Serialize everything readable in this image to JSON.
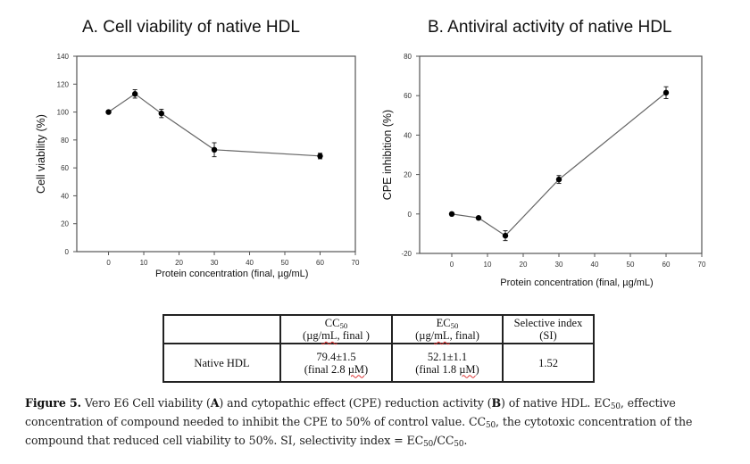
{
  "chart_data": [
    {
      "type": "line",
      "id": "A",
      "title": "A. Cell viability of native HDL",
      "xlabel": "Protein concentration (final, µg/mL)",
      "ylabel": "Cell viability (%)",
      "xlim": [
        -9,
        70
      ],
      "ylim": [
        0,
        140
      ],
      "xticks": [
        0,
        10,
        20,
        30,
        40,
        50,
        60,
        70
      ],
      "yticks": [
        0,
        20,
        40,
        60,
        80,
        100,
        120,
        140
      ],
      "grid": false,
      "legend": "none",
      "series": [
        {
          "name": "Native HDL",
          "x": [
            0,
            7.5,
            15,
            30,
            60
          ],
          "y": [
            100,
            113,
            99,
            73,
            68.5
          ],
          "error": [
            0.8,
            3,
            3,
            5,
            2
          ]
        }
      ]
    },
    {
      "type": "line",
      "id": "B",
      "title": "B. Antiviral activity of native HDL",
      "xlabel": "Protein concentration (final, µg/mL)",
      "ylabel": "CPE inhibition (%)",
      "xlim": [
        -9,
        70
      ],
      "ylim": [
        -20,
        80
      ],
      "xticks": [
        0,
        10,
        20,
        30,
        40,
        50,
        60,
        70
      ],
      "yticks": [
        -20,
        0,
        20,
        40,
        60,
        80
      ],
      "grid": false,
      "legend": "none",
      "series": [
        {
          "name": "Native HDL",
          "x": [
            0,
            7.5,
            15,
            30,
            60
          ],
          "y": [
            0,
            -2,
            -11,
            17.5,
            61.5
          ],
          "error": [
            0.5,
            0.8,
            2.5,
            2,
            3
          ]
        }
      ]
    }
  ],
  "table": {
    "headers": [
      {
        "main": "",
        "sub": "",
        "line2": ""
      },
      {
        "main": "CC",
        "sub": "50",
        "line2a": "(µg/",
        "line2b": "mL",
        "line2c": ", final )"
      },
      {
        "main": "EC",
        "sub": "50",
        "line2a": "(µg/",
        "line2b": "mL",
        "line2c": ", final)"
      },
      {
        "main": "Selective index",
        "sub": "",
        "line2": "(SI)"
      }
    ],
    "rows": [
      {
        "label": "Native HDL",
        "cc50": "79.4±1.5",
        "cc50_final_a": "(final 2.8 ",
        "cc50_final_b": "µM",
        "cc50_final_c": ")",
        "ec50": "52.1±1.1",
        "ec50_final_a": "(final 1.8 ",
        "ec50_final_b": "µM",
        "ec50_final_c": ")",
        "si": "1.52"
      }
    ]
  },
  "caption": {
    "label": "Figure 5.",
    "t1": " Vero E6 Cell viability (",
    "A": "A",
    "t2": ") and cytopathic effect (CPE) reduction activity (",
    "B": "B",
    "t3": ") of native HDL. EC",
    "s1": "50",
    "t4": ", effective concentration of compound needed to inhibit the CPE to 50% of control value. CC",
    "s2": "50",
    "t5": ", the cytotoxic concentration of the compound that reduced cell viability to 50%. SI, selectivity index = EC",
    "s3": "50",
    "t6": "/CC",
    "s4": "50",
    "t7": "."
  }
}
